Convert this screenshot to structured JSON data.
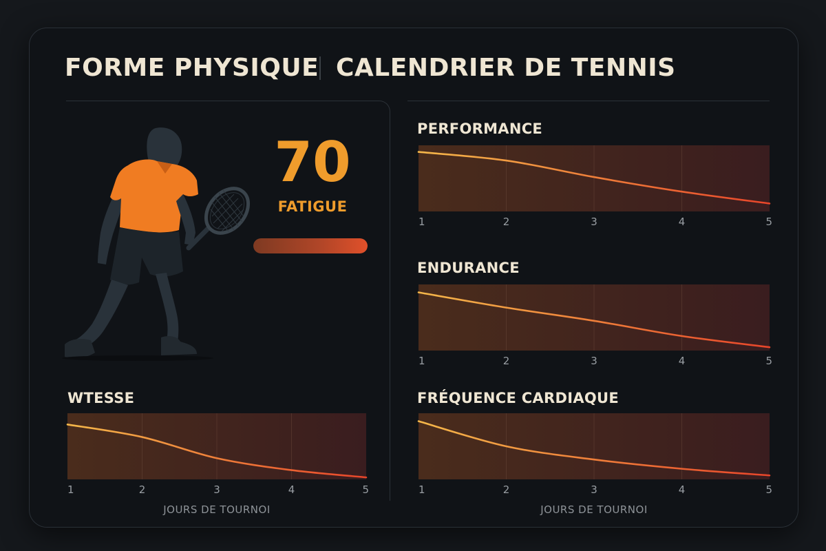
{
  "header": {
    "title_left": "FORME PHYSIQUE",
    "title_right": "CALENDRIER DE TENNIS"
  },
  "fatigue": {
    "value": "70",
    "label": "FATIGUE",
    "level": 1.0
  },
  "colors": {
    "accent": "#ef9c2c",
    "line_start": "#f5b84a",
    "line_end": "#e8452a",
    "shirt": "#f07c22"
  },
  "icons": {
    "player": "tennis-player-icon",
    "racket": "tennis-racket-icon"
  },
  "chart_data": [
    {
      "type": "line",
      "title": "PERFORMANCE",
      "x": [
        1,
        2,
        3,
        4,
        5
      ],
      "series": [
        {
          "values": [
            90,
            77,
            52,
            30,
            12
          ]
        }
      ],
      "ylim": [
        0,
        100
      ],
      "grid": true,
      "xlabel": ""
    },
    {
      "type": "line",
      "title": "ENDURANCE",
      "x": [
        1,
        2,
        3,
        4,
        5
      ],
      "series": [
        {
          "values": [
            88,
            65,
            45,
            22,
            5
          ]
        }
      ],
      "ylim": [
        0,
        100
      ],
      "grid": true,
      "xlabel": ""
    },
    {
      "type": "line",
      "title": "WTESSE",
      "x": [
        1,
        2,
        3,
        4,
        5
      ],
      "series": [
        {
          "values": [
            83,
            64,
            32,
            14,
            3
          ]
        }
      ],
      "ylim": [
        0,
        100
      ],
      "grid": true,
      "xlabel": "JOURS DE TOURNOI"
    },
    {
      "type": "line",
      "title": "FRÉQUENCE CARDIAQUE",
      "x": [
        1,
        2,
        3,
        4,
        5
      ],
      "series": [
        {
          "values": [
            88,
            50,
            30,
            16,
            6
          ]
        }
      ],
      "ylim": [
        0,
        100
      ],
      "grid": true,
      "xlabel": "JOURS DE TOURNOI"
    }
  ]
}
